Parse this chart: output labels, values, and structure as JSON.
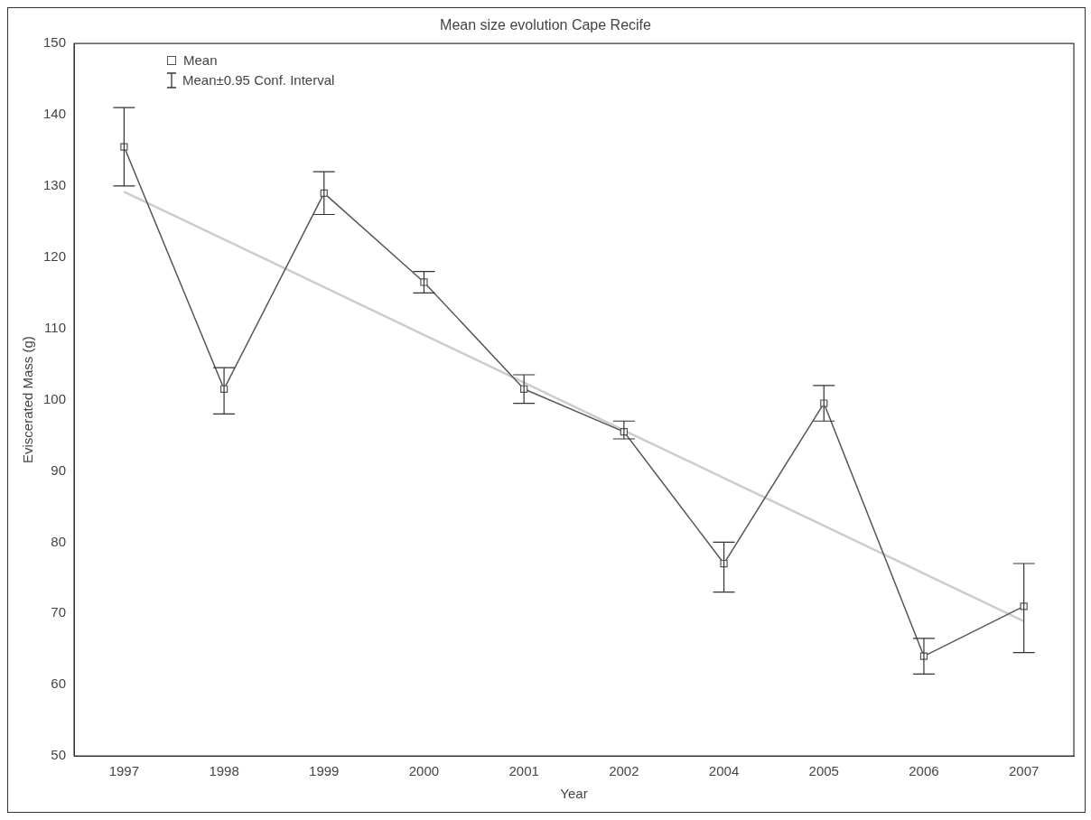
{
  "chart_data": {
    "type": "line",
    "title": "Mean size evolution Cape Recife",
    "xlabel": "Year",
    "ylabel": "Eviscerated Mass (g)",
    "categories": [
      "1997",
      "1998",
      "1999",
      "2000",
      "2001",
      "2002",
      "2004",
      "2005",
      "2006",
      "2007"
    ],
    "series": [
      {
        "name": "Mean",
        "color": "#555555",
        "values": [
          135.5,
          101.5,
          129,
          116.5,
          101.5,
          95.5,
          77,
          99.5,
          64,
          71
        ],
        "errors": [
          [
            130,
            141
          ],
          [
            98,
            104.5
          ],
          [
            126,
            132
          ],
          [
            115,
            118
          ],
          [
            99.5,
            103.5
          ],
          [
            94.5,
            97
          ],
          [
            73,
            80
          ],
          [
            97,
            102
          ],
          [
            61.5,
            66.5
          ],
          [
            64.5,
            77
          ]
        ],
        "marker": "square"
      },
      {
        "type": "line",
        "color": "#cccccc",
        "values": [
          129.2,
          122.5,
          115.8,
          109.1,
          102.4,
          95.7,
          89,
          82.3,
          75.6,
          68.9
        ],
        "marker": "none"
      }
    ],
    "annotations": [
      "Mean±0.95 Conf. Interval"
    ],
    "ylim": [
      50,
      150
    ],
    "yticks": [
      50,
      60,
      70,
      80,
      90,
      100,
      110,
      120,
      130,
      140,
      150
    ],
    "grid": false,
    "legend": "top left"
  }
}
